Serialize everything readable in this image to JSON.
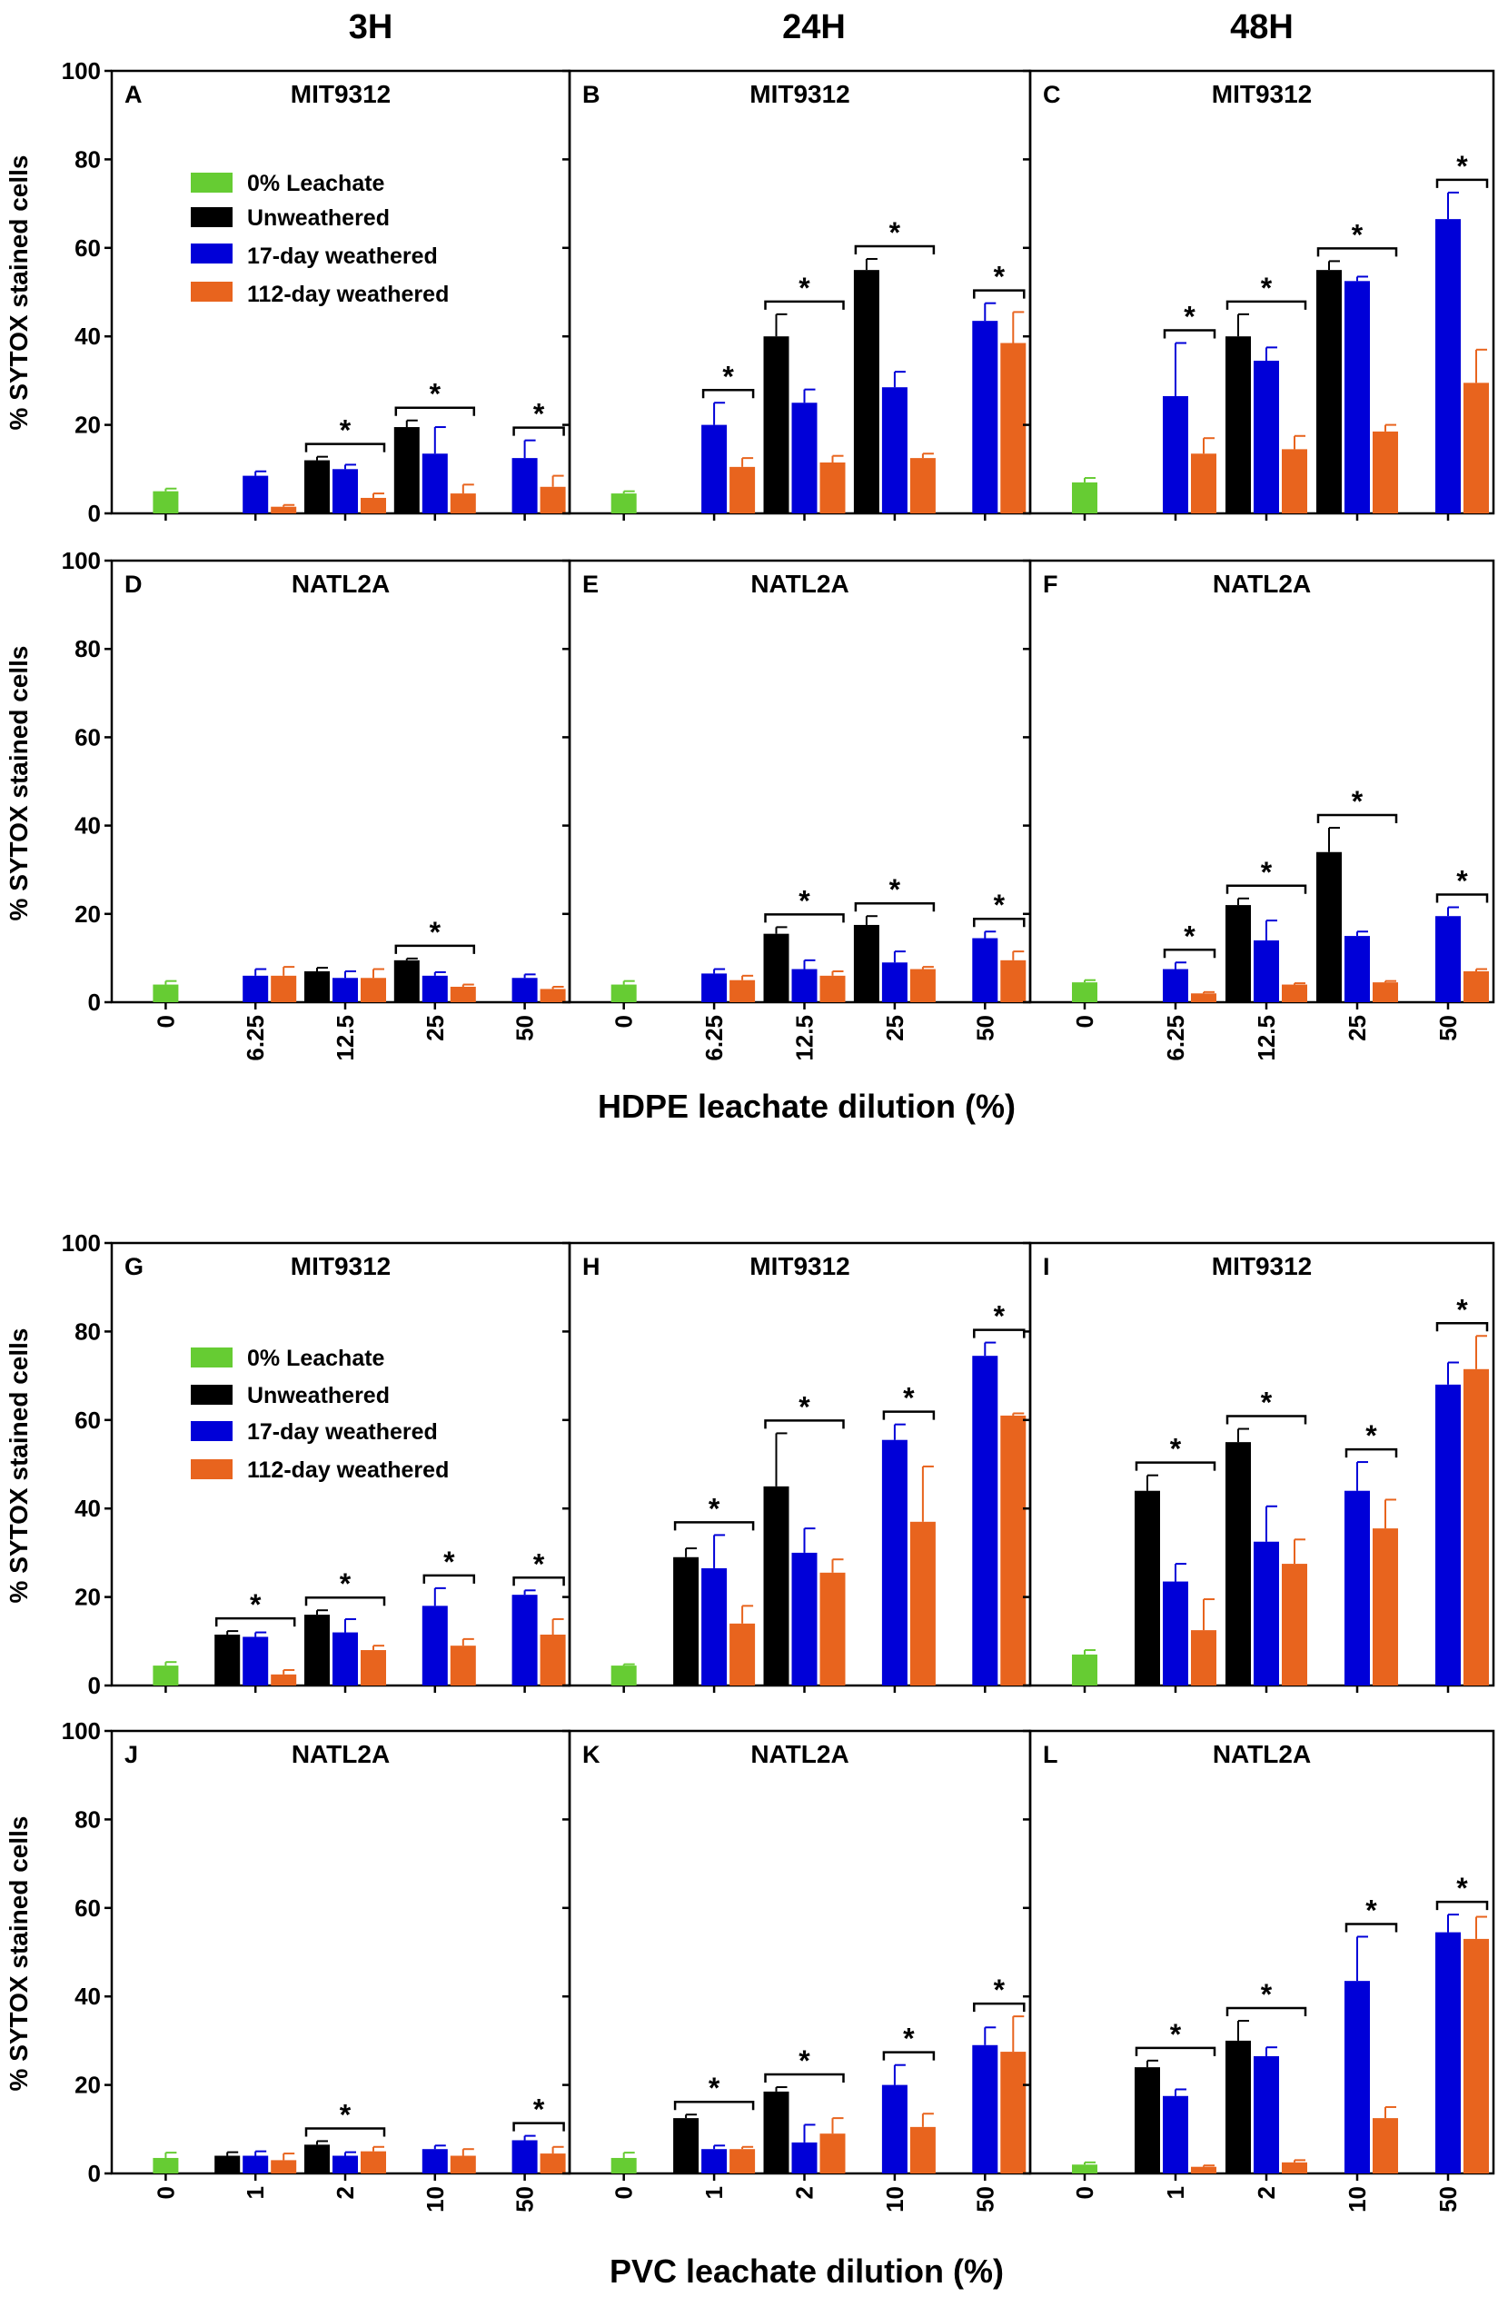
{
  "colors": {
    "control": "#66cc33",
    "unweathered": "#000000",
    "w17": "#0000d8",
    "w112": "#e8641e",
    "axis": "#000000"
  },
  "column_titles": [
    "3H",
    "24H",
    "48H"
  ],
  "y_axis_label": "% SYTOX stained cells",
  "y_ticks": [
    "0",
    "20",
    "40",
    "60",
    "80",
    "100"
  ],
  "legend": {
    "items": [
      {
        "label": "0% Leachate",
        "color": "#66cc33"
      },
      {
        "label": "Unweathered",
        "color": "#000000"
      },
      {
        "label": "17-day weathered",
        "color": "#0000d8"
      },
      {
        "label": "112-day weathered",
        "color": "#e8641e"
      }
    ]
  },
  "sections": [
    {
      "id": "hdpe",
      "xlabel": "HDPE leachate dilution (%)",
      "categories": [
        "0",
        "6.25",
        "12.5",
        "25",
        "50"
      ]
    },
    {
      "id": "pvc",
      "xlabel": "PVC leachate dilution (%)",
      "categories": [
        "0",
        "1",
        "2",
        "10",
        "50"
      ]
    }
  ],
  "chart_data": [
    {
      "type": "bar",
      "letter": "A",
      "title": "MIT9312",
      "section": "hdpe",
      "ylim": [
        0,
        100
      ],
      "ylabel": "% SYTOX stained cells",
      "control": {
        "value": 5,
        "err": 0.6
      },
      "series": [
        {
          "name": "Unweathered",
          "values": [
            null,
            12,
            19.5,
            null
          ],
          "errors": [
            null,
            0.8,
            1.5,
            null
          ]
        },
        {
          "name": "17-day weathered",
          "values": [
            8.5,
            10,
            13.5,
            12.5
          ],
          "errors": [
            1,
            1,
            6,
            4
          ]
        },
        {
          "name": "112-day weathered",
          "values": [
            1.5,
            3.5,
            4.5,
            6
          ],
          "errors": [
            0.4,
            1,
            2,
            2.5
          ]
        }
      ],
      "sig": [
        false,
        true,
        true,
        true
      ]
    },
    {
      "type": "bar",
      "letter": "B",
      "title": "MIT9312",
      "section": "hdpe",
      "ylim": [
        0,
        100
      ],
      "control": {
        "value": 4.5,
        "err": 0.5
      },
      "series": [
        {
          "name": "Unweathered",
          "values": [
            null,
            40,
            55,
            null
          ],
          "errors": [
            null,
            5,
            2.5,
            null
          ]
        },
        {
          "name": "17-day weathered",
          "values": [
            20,
            25,
            28.5,
            43.5
          ],
          "errors": [
            5,
            3,
            3.5,
            4
          ]
        },
        {
          "name": "112-day weathered",
          "values": [
            10.5,
            11.5,
            12.5,
            38.5
          ],
          "errors": [
            2,
            1.5,
            1,
            7
          ]
        }
      ],
      "sig": [
        true,
        true,
        true,
        true
      ]
    },
    {
      "type": "bar",
      "letter": "C",
      "title": "MIT9312",
      "section": "hdpe",
      "ylim": [
        0,
        100
      ],
      "control": {
        "value": 7,
        "err": 1
      },
      "series": [
        {
          "name": "Unweathered",
          "values": [
            null,
            40,
            55,
            null
          ],
          "errors": [
            null,
            5,
            2,
            null
          ]
        },
        {
          "name": "17-day weathered",
          "values": [
            26.5,
            34.5,
            52.5,
            66.5
          ],
          "errors": [
            12,
            3,
            1,
            6
          ]
        },
        {
          "name": "112-day weathered",
          "values": [
            13.5,
            14.5,
            18.5,
            29.5
          ],
          "errors": [
            3.5,
            3,
            1.5,
            7.5
          ]
        }
      ],
      "sig": [
        true,
        true,
        true,
        true
      ]
    },
    {
      "type": "bar",
      "letter": "D",
      "title": "NATL2A",
      "section": "hdpe",
      "ylim": [
        0,
        100
      ],
      "control": {
        "value": 4,
        "err": 0.8
      },
      "series": [
        {
          "name": "Unweathered",
          "values": [
            null,
            7,
            9.5,
            null
          ],
          "errors": [
            null,
            0.8,
            0.4,
            null
          ]
        },
        {
          "name": "17-day weathered",
          "values": [
            6,
            5.5,
            6,
            5.5
          ],
          "errors": [
            1.5,
            1.5,
            0.8,
            0.8
          ]
        },
        {
          "name": "112-day weathered",
          "values": [
            6,
            5.5,
            3.5,
            3
          ],
          "errors": [
            2,
            2,
            0.5,
            0.5
          ]
        }
      ],
      "sig": [
        false,
        false,
        true,
        false
      ]
    },
    {
      "type": "bar",
      "letter": "E",
      "title": "NATL2A",
      "section": "hdpe",
      "ylim": [
        0,
        100
      ],
      "control": {
        "value": 4,
        "err": 0.8
      },
      "series": [
        {
          "name": "Unweathered",
          "values": [
            null,
            15.5,
            17.5,
            null
          ],
          "errors": [
            null,
            1.5,
            2,
            null
          ]
        },
        {
          "name": "17-day weathered",
          "values": [
            6.5,
            7.5,
            9,
            14.5
          ],
          "errors": [
            1,
            2,
            2.5,
            1.5
          ]
        },
        {
          "name": "112-day weathered",
          "values": [
            5,
            6,
            7.5,
            9.5
          ],
          "errors": [
            1,
            1,
            0.5,
            2
          ]
        }
      ],
      "sig": [
        false,
        true,
        true,
        true
      ]
    },
    {
      "type": "bar",
      "letter": "F",
      "title": "NATL2A",
      "section": "hdpe",
      "ylim": [
        0,
        100
      ],
      "control": {
        "value": 4.5,
        "err": 0.5
      },
      "series": [
        {
          "name": "Unweathered",
          "values": [
            null,
            22,
            34,
            null
          ],
          "errors": [
            null,
            1.5,
            5.5,
            null
          ]
        },
        {
          "name": "17-day weathered",
          "values": [
            7.5,
            14,
            15,
            19.5
          ],
          "errors": [
            1.5,
            4.5,
            1,
            2
          ]
        },
        {
          "name": "112-day weathered",
          "values": [
            2,
            4,
            4.5,
            7
          ],
          "errors": [
            0.3,
            0.3,
            0.3,
            0.5
          ]
        }
      ],
      "sig": [
        true,
        true,
        true,
        true
      ]
    },
    {
      "type": "bar",
      "letter": "G",
      "title": "MIT9312",
      "section": "pvc",
      "ylim": [
        0,
        100
      ],
      "ylabel": "% SYTOX stained cells",
      "control": {
        "value": 4.5,
        "err": 0.8
      },
      "series": [
        {
          "name": "Unweathered",
          "values": [
            11.5,
            16,
            null,
            null
          ],
          "errors": [
            0.8,
            1,
            null,
            null
          ]
        },
        {
          "name": "17-day weathered",
          "values": [
            11,
            12,
            18,
            20.5
          ],
          "errors": [
            1,
            3,
            4,
            1
          ]
        },
        {
          "name": "112-day weathered",
          "values": [
            2.5,
            8,
            9,
            11.5
          ],
          "errors": [
            1,
            1,
            1.5,
            3.5
          ]
        }
      ],
      "sig": [
        true,
        true,
        true,
        true
      ]
    },
    {
      "type": "bar",
      "letter": "H",
      "title": "MIT9312",
      "section": "pvc",
      "ylim": [
        0,
        100
      ],
      "control": {
        "value": 4.5,
        "err": 0.3
      },
      "series": [
        {
          "name": "Unweathered",
          "values": [
            29,
            45,
            null,
            null
          ],
          "errors": [
            2,
            12,
            null,
            null
          ]
        },
        {
          "name": "17-day weathered",
          "values": [
            26.5,
            30,
            55.5,
            74.5
          ],
          "errors": [
            7.5,
            5.5,
            3.5,
            3
          ]
        },
        {
          "name": "112-day weathered",
          "values": [
            14,
            25.5,
            37,
            61
          ],
          "errors": [
            4,
            3,
            12.5,
            0.5
          ]
        }
      ],
      "sig": [
        true,
        true,
        true,
        true
      ]
    },
    {
      "type": "bar",
      "letter": "I",
      "title": "MIT9312",
      "section": "pvc",
      "ylim": [
        0,
        100
      ],
      "control": {
        "value": 7,
        "err": 1
      },
      "series": [
        {
          "name": "Unweathered",
          "values": [
            44,
            55,
            null,
            null
          ],
          "errors": [
            3.5,
            3,
            null,
            null
          ]
        },
        {
          "name": "17-day weathered",
          "values": [
            23.5,
            32.5,
            44,
            68
          ],
          "errors": [
            4,
            8,
            6.5,
            5
          ]
        },
        {
          "name": "112-day weathered",
          "values": [
            12.5,
            27.5,
            35.5,
            71.5
          ],
          "errors": [
            7,
            5.5,
            6.5,
            7.5
          ]
        }
      ],
      "sig": [
        true,
        true,
        true,
        true
      ]
    },
    {
      "type": "bar",
      "letter": "J",
      "title": "NATL2A",
      "section": "pvc",
      "ylim": [
        0,
        100
      ],
      "control": {
        "value": 3.5,
        "err": 1.2
      },
      "series": [
        {
          "name": "Unweathered",
          "values": [
            4,
            6.5,
            null,
            null
          ],
          "errors": [
            0.8,
            0.8,
            null,
            null
          ]
        },
        {
          "name": "17-day weathered",
          "values": [
            4,
            4,
            5.5,
            7.5
          ],
          "errors": [
            1,
            0.8,
            0.8,
            1
          ]
        },
        {
          "name": "112-day weathered",
          "values": [
            3,
            5,
            4,
            4.5
          ],
          "errors": [
            1.5,
            1,
            1.5,
            1.5
          ]
        }
      ],
      "sig": [
        false,
        true,
        false,
        true
      ]
    },
    {
      "type": "bar",
      "letter": "K",
      "title": "NATL2A",
      "section": "pvc",
      "ylim": [
        0,
        100
      ],
      "control": {
        "value": 3.5,
        "err": 1.2
      },
      "series": [
        {
          "name": "Unweathered",
          "values": [
            12.5,
            18.5,
            null,
            null
          ],
          "errors": [
            0.8,
            1,
            null,
            null
          ]
        },
        {
          "name": "17-day weathered",
          "values": [
            5.5,
            7,
            20,
            29
          ],
          "errors": [
            0.8,
            4,
            4.5,
            4
          ]
        },
        {
          "name": "112-day weathered",
          "values": [
            5.5,
            9,
            10.5,
            27.5
          ],
          "errors": [
            0.5,
            3.5,
            3,
            8
          ]
        }
      ],
      "sig": [
        true,
        true,
        true,
        true
      ]
    },
    {
      "type": "bar",
      "letter": "L",
      "title": "NATL2A",
      "section": "pvc",
      "ylim": [
        0,
        100
      ],
      "control": {
        "value": 2,
        "err": 0.5
      },
      "series": [
        {
          "name": "Unweathered",
          "values": [
            24,
            30,
            null,
            null
          ],
          "errors": [
            1.5,
            4.5,
            null,
            null
          ]
        },
        {
          "name": "17-day weathered",
          "values": [
            17.5,
            26.5,
            43.5,
            54.5
          ],
          "errors": [
            1.5,
            2,
            10,
            4
          ]
        },
        {
          "name": "112-day weathered",
          "values": [
            1.5,
            2.5,
            12.5,
            53
          ],
          "errors": [
            0.3,
            0.5,
            2.5,
            5
          ]
        }
      ],
      "sig": [
        true,
        true,
        true,
        true
      ]
    }
  ]
}
